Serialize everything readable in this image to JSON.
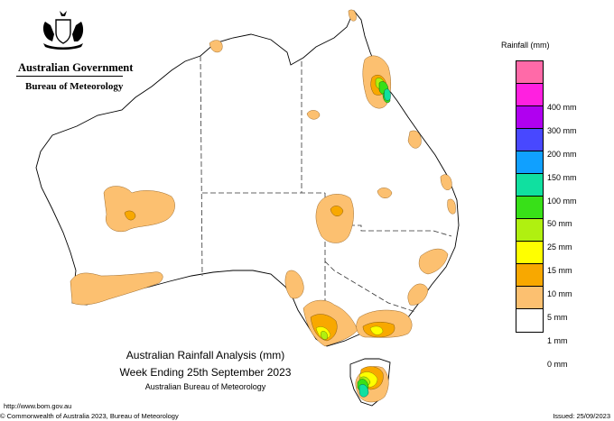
{
  "header": {
    "government": "Australian Government",
    "agency": "Bureau of Meteorology"
  },
  "legend": {
    "title": "Rainfall (mm)",
    "items": [
      {
        "label": "",
        "color": "#ff6aa8"
      },
      {
        "label": "400 mm",
        "color": "#ff20e0"
      },
      {
        "label": "300 mm",
        "color": "#b000f0"
      },
      {
        "label": "200 mm",
        "color": "#4848ff"
      },
      {
        "label": "150 mm",
        "color": "#10a0ff"
      },
      {
        "label": "100 mm",
        "color": "#10e0a0"
      },
      {
        "label": "50 mm",
        "color": "#38e018"
      },
      {
        "label": "25 mm",
        "color": "#b0f010"
      },
      {
        "label": "15 mm",
        "color": "#ffff00"
      },
      {
        "label": "10 mm",
        "color": "#f8a800"
      },
      {
        "label": "5 mm",
        "color": "#fcc070"
      },
      {
        "label": "1 mm",
        "color": "#ffffff"
      },
      {
        "label": "0 mm",
        "color": ""
      }
    ]
  },
  "title": {
    "line1": "Australian Rainfall Analysis (mm)",
    "line2": "Week Ending 25th September 2023",
    "line3": "Australian Bureau of Meteorology"
  },
  "footer": {
    "url": "http://www.bom.gov.au",
    "copyright": "© Commonwealth of Australia 2023, Bureau of Meteorology",
    "issued": "Issued: 25/09/2023"
  },
  "colors": {
    "light_orange": "#fcc070",
    "orange": "#f8a800",
    "yellow": "#ffff00",
    "lime": "#b0f010",
    "green": "#38e018",
    "teal": "#10e0a0"
  }
}
